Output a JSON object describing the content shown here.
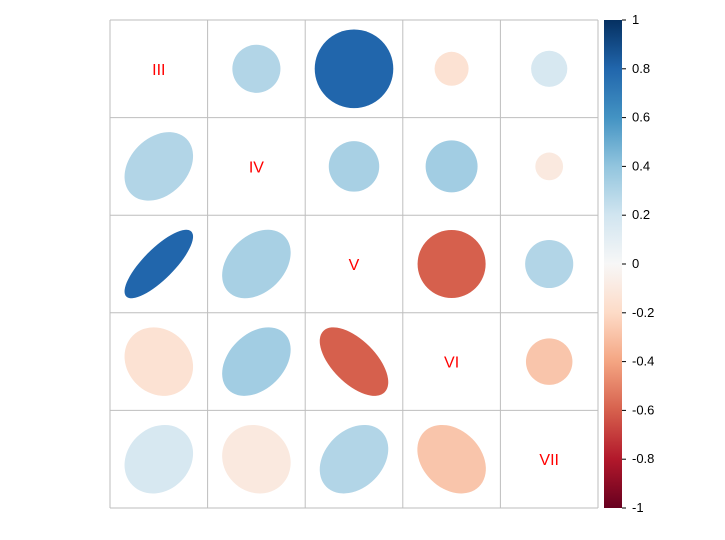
{
  "chart_data": {
    "type": "heatmap",
    "style": "correlation-matrix-mixed-ellipse-circle",
    "variables": [
      "III",
      "IV",
      "V",
      "VI",
      "VII"
    ],
    "matrix": [
      [
        1.0,
        0.3,
        0.8,
        -0.15,
        0.17
      ],
      [
        0.3,
        1.0,
        0.33,
        0.35,
        -0.1
      ],
      [
        0.8,
        0.33,
        1.0,
        -0.6,
        0.3
      ],
      [
        -0.15,
        0.35,
        -0.6,
        1.0,
        -0.28
      ],
      [
        0.17,
        -0.1,
        0.3,
        -0.28,
        1.0
      ]
    ],
    "upper_triangle": "circle",
    "lower_triangle": "ellipse",
    "diagonal": "variable-labels",
    "colorbar": {
      "range": [
        -1,
        1
      ],
      "ticks": [
        "-1",
        "-0.8",
        "-0.6",
        "-0.4",
        "-0.2",
        "0",
        "0.2",
        "0.4",
        "0.6",
        "0.8",
        "1"
      ],
      "placement": "right"
    },
    "colors": {
      "negative_end": "#67001f",
      "positive_end": "#053061",
      "label": "#ff0000",
      "grid": "#bebebe"
    }
  }
}
